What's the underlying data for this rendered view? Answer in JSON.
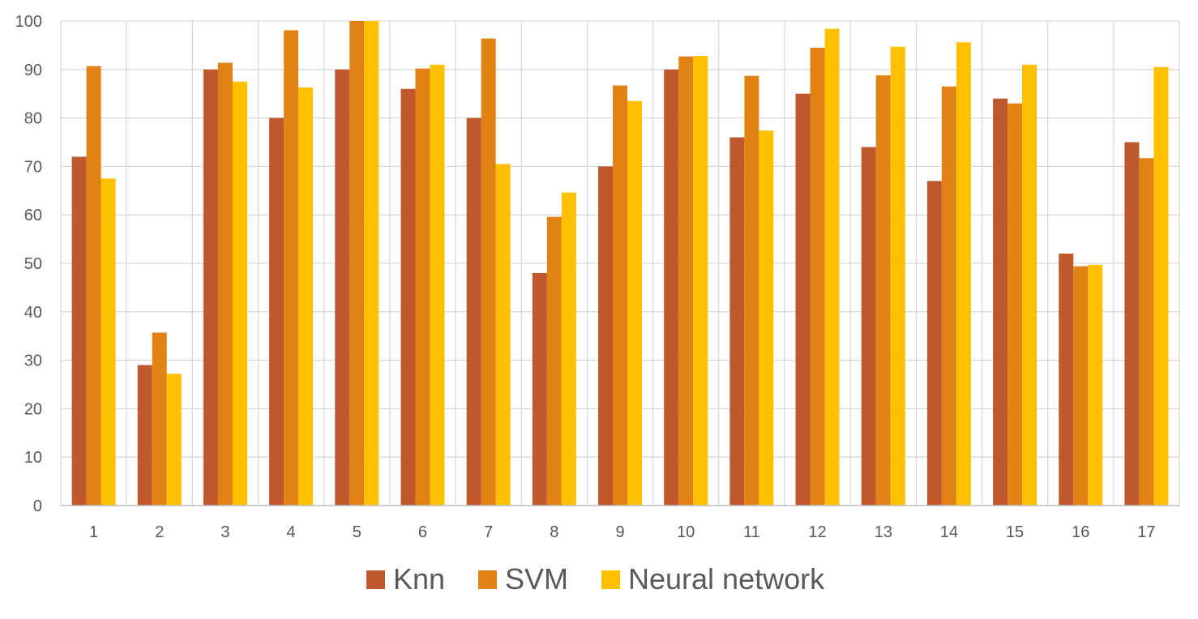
{
  "chart_data": {
    "type": "bar",
    "title": "",
    "xlabel": "",
    "ylabel": "",
    "categories": [
      "1",
      "2",
      "3",
      "4",
      "5",
      "6",
      "7",
      "8",
      "9",
      "10",
      "11",
      "12",
      "13",
      "14",
      "15",
      "16",
      "17"
    ],
    "ylim": [
      0,
      100
    ],
    "yticks": [
      "0",
      "10",
      "20",
      "30",
      "40",
      "50",
      "60",
      "70",
      "80",
      "90",
      "100"
    ],
    "grid": true,
    "legend_position": "bottom",
    "series": [
      {
        "name": "Knn",
        "color": "#C0582D",
        "values": [
          72,
          29,
          90,
          80,
          90,
          86,
          80,
          48,
          70,
          90,
          76,
          85,
          74,
          67,
          84,
          52,
          75
        ]
      },
      {
        "name": "SVM",
        "color": "#E28215",
        "values": [
          90.7,
          35.7,
          91.4,
          98.1,
          100,
          90.2,
          96.4,
          59.6,
          86.7,
          92.7,
          88.7,
          94.5,
          88.8,
          86.5,
          83,
          49.4,
          71.7
        ]
      },
      {
        "name": "Neural network",
        "color": "#FFC000",
        "values": [
          67.5,
          27.2,
          87.5,
          86.3,
          100,
          91,
          70.5,
          64.6,
          83.5,
          92.8,
          77.4,
          98.4,
          94.7,
          95.6,
          91,
          49.7,
          90.5
        ]
      }
    ]
  }
}
